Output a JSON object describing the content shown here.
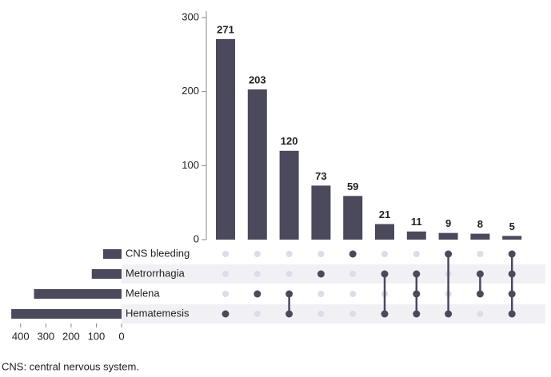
{
  "chart_data": {
    "type": "upset",
    "values": [
      271,
      203,
      120,
      73,
      59,
      21,
      11,
      9,
      8,
      5
    ],
    "members": [
      [
        3
      ],
      [
        2
      ],
      [
        2,
        3
      ],
      [
        1
      ],
      [
        0
      ],
      [
        1,
        3
      ],
      [
        1,
        2,
        3
      ],
      [
        0,
        3
      ],
      [
        1,
        2
      ],
      [
        0,
        1,
        2,
        3
      ]
    ],
    "ylim": [
      0,
      300
    ],
    "yticks": [
      0,
      100,
      200,
      300
    ],
    "sets": [
      "CNS bleeding",
      "Metrorrhagia",
      "Melena",
      "Hematemesis"
    ],
    "set_sizes": [
      73,
      118,
      347,
      437
    ],
    "xlim": [
      0,
      450
    ],
    "xticks": [
      0,
      100,
      200,
      300,
      400
    ],
    "color": "#4b4a5c",
    "caption": "CNS: central nervous system."
  }
}
